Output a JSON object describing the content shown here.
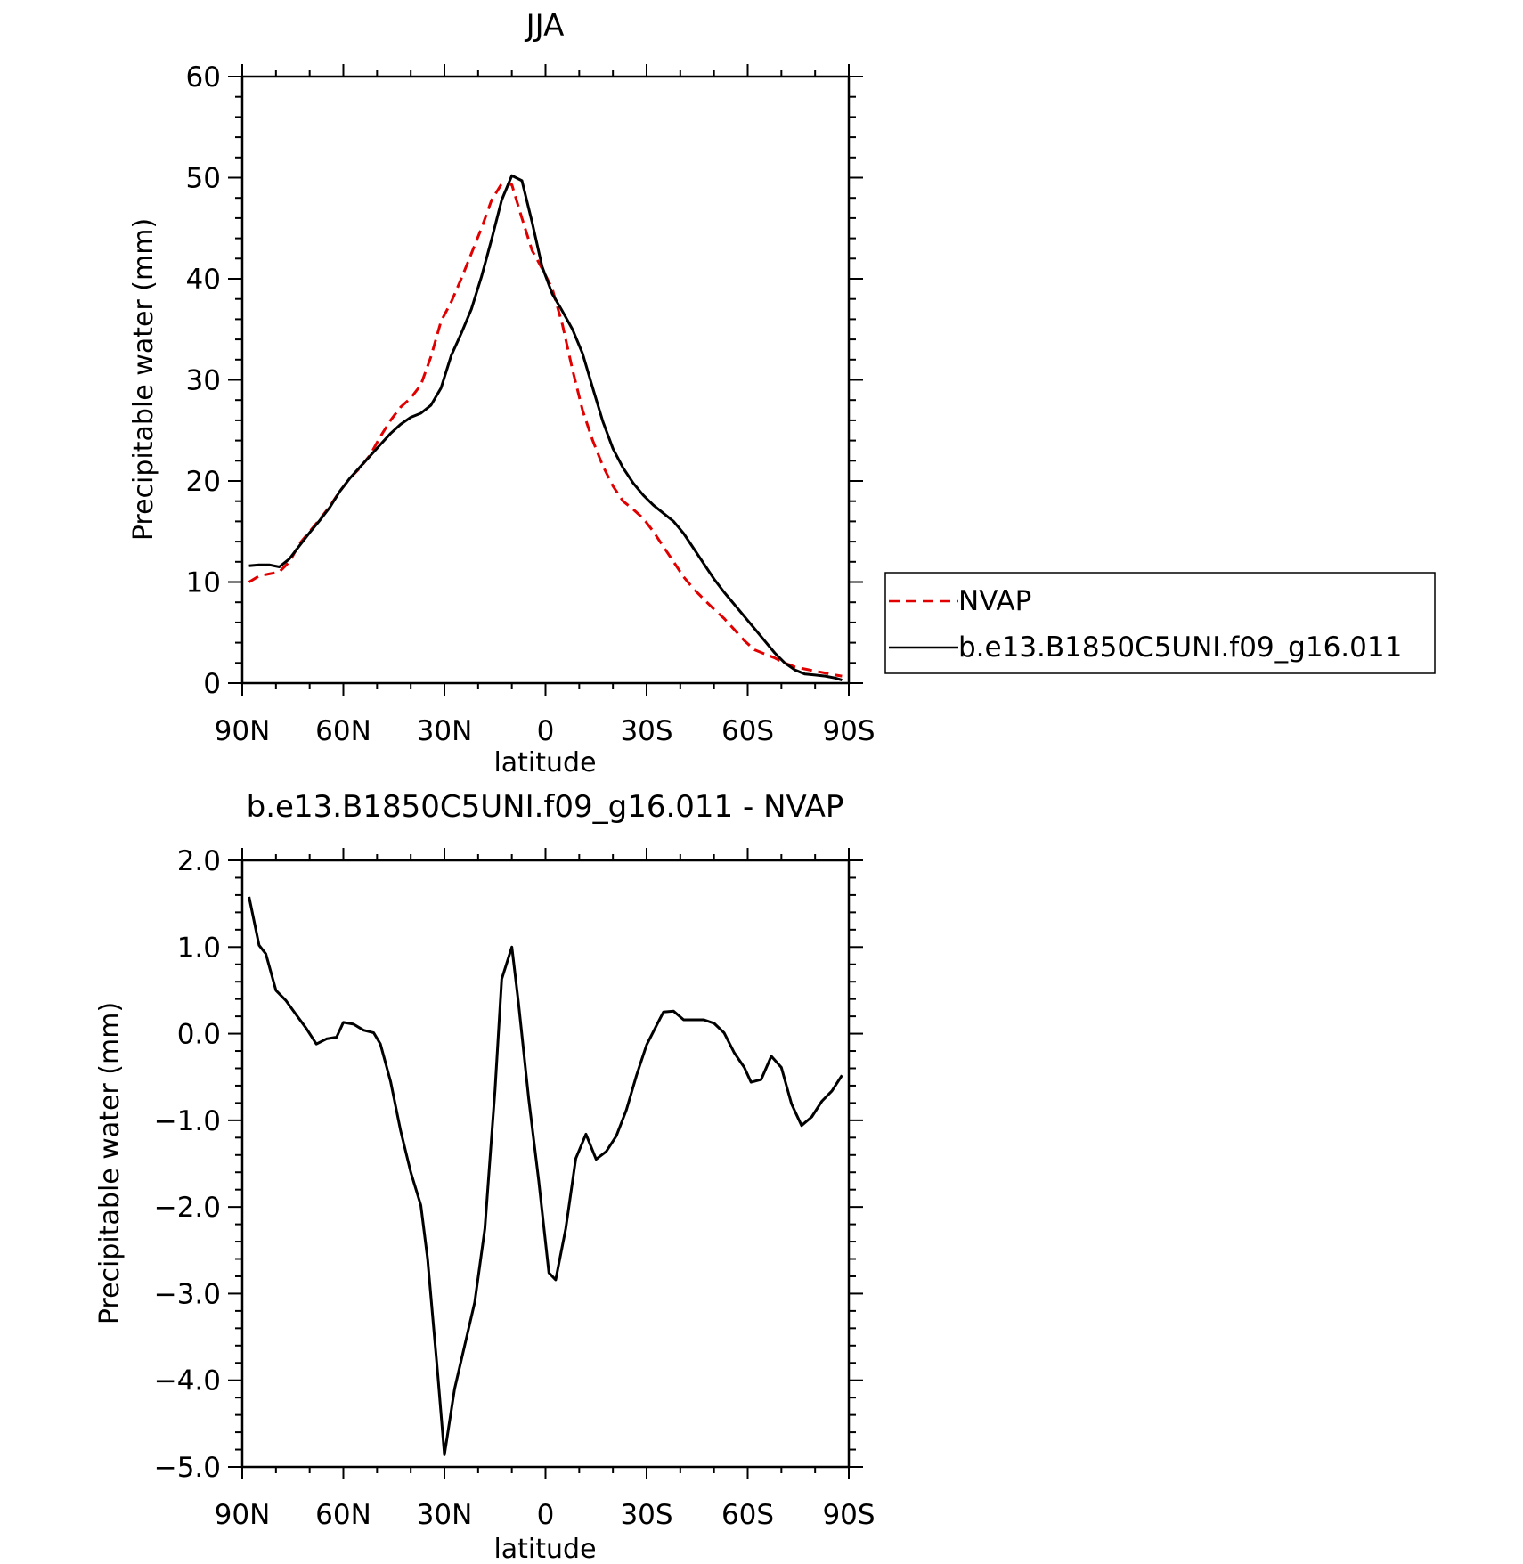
{
  "chart_data": [
    {
      "type": "line",
      "title": "JJA",
      "xlabel": "latitude",
      "ylabel": "Precipitable water (mm)",
      "xlim": [
        90,
        -90
      ],
      "ylim": [
        0,
        60
      ],
      "xticks": [
        {
          "value": 90,
          "label": "90N"
        },
        {
          "value": 60,
          "label": "60N"
        },
        {
          "value": 30,
          "label": "30N"
        },
        {
          "value": 0,
          "label": "0"
        },
        {
          "value": -30,
          "label": "30S"
        },
        {
          "value": -60,
          "label": "60S"
        },
        {
          "value": -90,
          "label": "90S"
        }
      ],
      "yticks": [
        {
          "value": 0,
          "label": "0"
        },
        {
          "value": 10,
          "label": "10"
        },
        {
          "value": 20,
          "label": "20"
        },
        {
          "value": 30,
          "label": "30"
        },
        {
          "value": 40,
          "label": "40"
        },
        {
          "value": 50,
          "label": "50"
        },
        {
          "value": 60,
          "label": "60"
        }
      ],
      "legend_position": "right",
      "series": [
        {
          "name": "NVAP",
          "color": "#e00000",
          "dash": true,
          "x": [
            88,
            85,
            82,
            79,
            76,
            73,
            70,
            67,
            64,
            61,
            58,
            55,
            52,
            49,
            46,
            43,
            40,
            37,
            34,
            31,
            28,
            25,
            22,
            19,
            16,
            13,
            10,
            7,
            4,
            1,
            -2,
            -5,
            -8,
            -11,
            -14,
            -17,
            -20,
            -23,
            -26,
            -29,
            -32,
            -35,
            -38,
            -41,
            -44,
            -47,
            -50,
            -53,
            -56,
            -59,
            -62,
            -65,
            -68,
            -71,
            -74,
            -77,
            -80,
            -83,
            -86,
            -88
          ],
          "y": [
            10.0,
            10.6,
            10.8,
            11.0,
            12.0,
            13.8,
            15.0,
            16.2,
            17.5,
            19.0,
            20.3,
            21.3,
            22.6,
            24.4,
            26.0,
            27.3,
            28.2,
            29.5,
            32.3,
            35.8,
            37.7,
            40.0,
            42.5,
            45.0,
            47.8,
            49.4,
            49.3,
            46.0,
            42.8,
            41.0,
            39.0,
            35.5,
            31.0,
            27.0,
            24.0,
            21.5,
            19.5,
            18.0,
            17.2,
            16.3,
            15.0,
            13.5,
            12.0,
            10.5,
            9.3,
            8.3,
            7.3,
            6.4,
            5.3,
            4.2,
            3.3,
            2.9,
            2.5,
            2.0,
            1.6,
            1.4,
            1.2,
            1.0,
            0.8,
            0.7
          ]
        },
        {
          "name": "b.e13.B1850C5UNI.f09_g16.011",
          "color": "#000000",
          "dash": false,
          "x": [
            88,
            85,
            82,
            79,
            76,
            73,
            70,
            67,
            64,
            61,
            58,
            55,
            52,
            49,
            46,
            43,
            40,
            37,
            34,
            31,
            28,
            25,
            22,
            19,
            16,
            13,
            10,
            7,
            4,
            1,
            -2,
            -5,
            -8,
            -11,
            -14,
            -17,
            -20,
            -23,
            -26,
            -29,
            -32,
            -35,
            -38,
            -41,
            -44,
            -47,
            -50,
            -53,
            -56,
            -59,
            -62,
            -65,
            -68,
            -71,
            -74,
            -77,
            -80,
            -83,
            -86,
            -88
          ],
          "y": [
            11.6,
            11.7,
            11.7,
            11.5,
            12.3,
            13.6,
            14.9,
            16.1,
            17.4,
            19.0,
            20.3,
            21.4,
            22.5,
            23.6,
            24.7,
            25.6,
            26.3,
            26.7,
            27.5,
            29.2,
            32.4,
            34.6,
            37.0,
            40.2,
            43.9,
            47.8,
            50.2,
            49.7,
            45.6,
            41.2,
            38.5,
            36.8,
            35.0,
            32.6,
            29.2,
            25.9,
            23.2,
            21.3,
            19.8,
            18.6,
            17.6,
            16.8,
            16.0,
            14.8,
            13.3,
            11.8,
            10.3,
            9.0,
            7.8,
            6.6,
            5.4,
            4.2,
            3.0,
            2.0,
            1.3,
            0.9,
            0.8,
            0.7,
            0.5,
            0.3
          ]
        }
      ]
    },
    {
      "type": "line",
      "title": "b.e13.B1850C5UNI.f09_g16.011 - NVAP",
      "xlabel": "latitude",
      "ylabel": "Precipitable water (mm)",
      "xlim": [
        90,
        -90
      ],
      "ylim": [
        -5.0,
        2.0
      ],
      "xticks": [
        {
          "value": 90,
          "label": "90N"
        },
        {
          "value": 60,
          "label": "60N"
        },
        {
          "value": 30,
          "label": "30N"
        },
        {
          "value": 0,
          "label": "0"
        },
        {
          "value": -30,
          "label": "30S"
        },
        {
          "value": -60,
          "label": "60S"
        },
        {
          "value": -90,
          "label": "90S"
        }
      ],
      "yticks": [
        {
          "value": 2.0,
          "label": "2.0"
        },
        {
          "value": 1.0,
          "label": "1.0"
        },
        {
          "value": 0.0,
          "label": "0.0"
        },
        {
          "value": -1.0,
          "label": "−1.0"
        },
        {
          "value": -2.0,
          "label": "−2.0"
        },
        {
          "value": -3.0,
          "label": "−3.0"
        },
        {
          "value": -4.0,
          "label": "−4.0"
        },
        {
          "value": -5.0,
          "label": "−5.0"
        }
      ],
      "series": [
        {
          "color": "#000000",
          "dash": false,
          "x": [
            88,
            85,
            83,
            80,
            77,
            74,
            71,
            68,
            65,
            62,
            60,
            57,
            54,
            51,
            49,
            46,
            43,
            40,
            37,
            35,
            32,
            30,
            27,
            24,
            21,
            18,
            15,
            13,
            10,
            8,
            5,
            2,
            -1,
            -3,
            -6,
            -9,
            -12,
            -15,
            -18,
            -21,
            -24,
            -27,
            -30,
            -33,
            -35,
            -38,
            -41,
            -44,
            -47,
            -50,
            -53,
            -56,
            -59,
            -61,
            -64,
            -67,
            -70,
            -73,
            -76,
            -79,
            -82,
            -85,
            -88
          ],
          "y": [
            1.58,
            1.02,
            0.92,
            0.5,
            0.38,
            0.22,
            0.06,
            -0.12,
            -0.06,
            -0.04,
            0.13,
            0.11,
            0.04,
            0.01,
            -0.12,
            -0.55,
            -1.12,
            -1.6,
            -1.98,
            -2.6,
            -3.92,
            -4.86,
            -4.1,
            -3.6,
            -3.1,
            -2.25,
            -0.65,
            0.63,
            1.0,
            0.35,
            -0.75,
            -1.7,
            -2.76,
            -2.84,
            -2.25,
            -1.44,
            -1.16,
            -1.45,
            -1.36,
            -1.18,
            -0.88,
            -0.48,
            -0.13,
            0.1,
            0.25,
            0.26,
            0.16,
            0.16,
            0.16,
            0.12,
            0.01,
            -0.22,
            -0.39,
            -0.56,
            -0.53,
            -0.26,
            -0.39,
            -0.81,
            -1.06,
            -0.96,
            -0.78,
            -0.66,
            -0.48
          ]
        }
      ]
    }
  ]
}
